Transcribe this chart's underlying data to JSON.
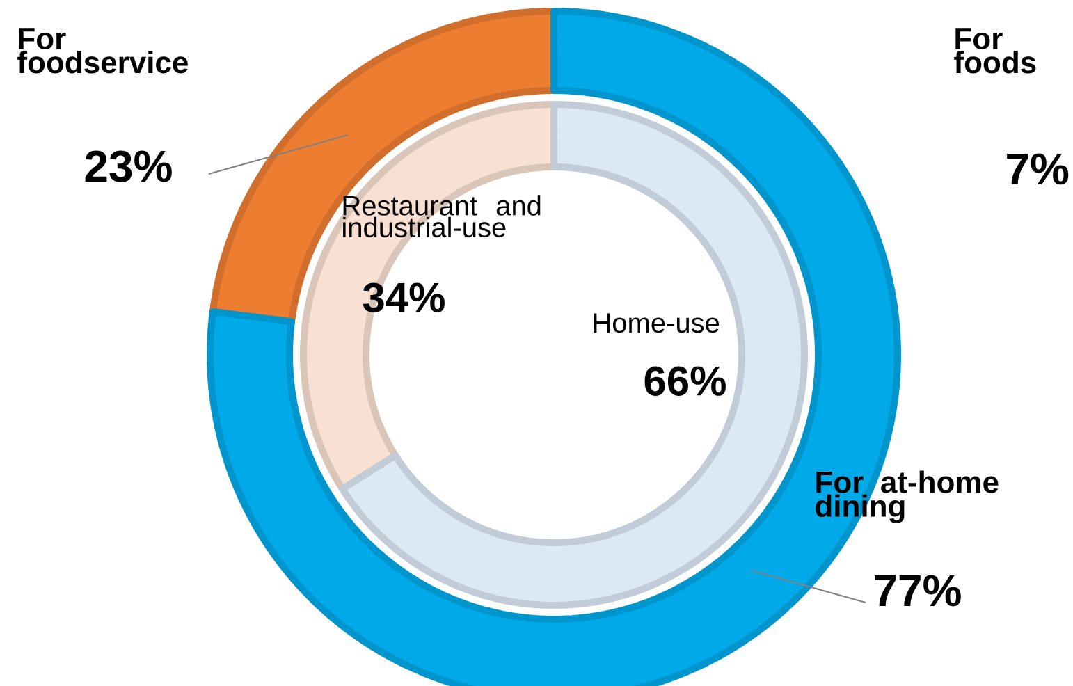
{
  "chart_data": [
    {
      "type": "donut",
      "categories": [
        "For foodservice",
        "For at-home dining"
      ],
      "values": [
        23,
        77
      ],
      "value_labels": [
        "23%",
        "77%"
      ],
      "colors": [
        "#ed7d31",
        "#00a9e8"
      ]
    },
    {
      "type": "donut",
      "categories": [
        "Restaurant and industrial-use",
        "Home-use"
      ],
      "values": [
        34,
        66
      ],
      "value_labels": [
        "34%",
        "66%"
      ],
      "colors": [
        "#f8e0d2",
        "#dde8f5"
      ]
    },
    {
      "type": "other",
      "annotations": [
        "For foods",
        "7%"
      ]
    }
  ]
}
